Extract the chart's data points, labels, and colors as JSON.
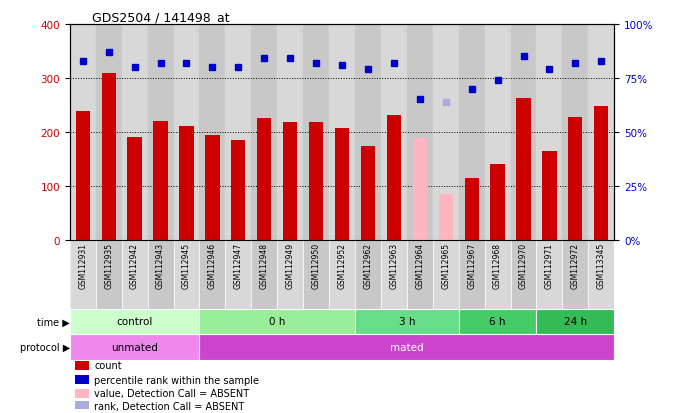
{
  "title": "GDS2504 / 141498_at",
  "samples": [
    "GSM112931",
    "GSM112935",
    "GSM112942",
    "GSM112943",
    "GSM112945",
    "GSM112946",
    "GSM112947",
    "GSM112948",
    "GSM112949",
    "GSM112950",
    "GSM112952",
    "GSM112962",
    "GSM112963",
    "GSM112964",
    "GSM112965",
    "GSM112967",
    "GSM112968",
    "GSM112970",
    "GSM112971",
    "GSM112972",
    "GSM113345"
  ],
  "bar_values": [
    238,
    309,
    190,
    220,
    210,
    194,
    185,
    225,
    218,
    218,
    207,
    174,
    232,
    188,
    85,
    115,
    140,
    262,
    165,
    228,
    247
  ],
  "bar_absent": [
    false,
    false,
    false,
    false,
    false,
    false,
    false,
    false,
    false,
    false,
    false,
    false,
    false,
    true,
    true,
    false,
    false,
    false,
    false,
    false,
    false
  ],
  "dot_values": [
    83,
    87,
    80,
    82,
    82,
    80,
    80,
    84,
    84,
    82,
    81,
    79,
    82,
    65,
    64,
    70,
    74,
    85,
    79,
    82,
    83
  ],
  "dot_absent": [
    false,
    false,
    false,
    false,
    false,
    false,
    false,
    false,
    false,
    false,
    false,
    false,
    false,
    false,
    true,
    false,
    false,
    false,
    false,
    false,
    false
  ],
  "bar_color_normal": "#CC0000",
  "bar_color_absent": "#FFB6C1",
  "dot_color_normal": "#0000CC",
  "dot_color_absent": "#AAAADD",
  "ylim_left": [
    0,
    400
  ],
  "ylim_right": [
    0,
    100
  ],
  "yticks_left": [
    0,
    100,
    200,
    300,
    400
  ],
  "yticks_right": [
    0,
    25,
    50,
    75,
    100
  ],
  "ytick_labels_right": [
    "0%",
    "25%",
    "50%",
    "75%",
    "100%"
  ],
  "grid_values": [
    100,
    200,
    300
  ],
  "time_groups": [
    {
      "label": "control",
      "start": 0,
      "end": 4,
      "color": "#CCFFCC"
    },
    {
      "label": "0 h",
      "start": 5,
      "end": 10,
      "color": "#99EE99"
    },
    {
      "label": "3 h",
      "start": 11,
      "end": 14,
      "color": "#66DD88"
    },
    {
      "label": "6 h",
      "start": 15,
      "end": 17,
      "color": "#44CC66"
    },
    {
      "label": "24 h",
      "start": 18,
      "end": 20,
      "color": "#33BB55"
    }
  ],
  "protocol_groups": [
    {
      "label": "unmated",
      "start": 0,
      "end": 4,
      "color": "#EE88EE"
    },
    {
      "label": "mated",
      "start": 5,
      "end": 20,
      "color": "#CC44CC"
    }
  ],
  "col_bg_even": "#D8D8D8",
  "col_bg_odd": "#C8C8C8",
  "plot_bg": "#FFFFFF",
  "legend": [
    {
      "color": "#CC0000",
      "label": "count"
    },
    {
      "color": "#0000CC",
      "label": "percentile rank within the sample"
    },
    {
      "color": "#FFB6C1",
      "label": "value, Detection Call = ABSENT"
    },
    {
      "color": "#AAAADD",
      "label": "rank, Detection Call = ABSENT"
    }
  ]
}
